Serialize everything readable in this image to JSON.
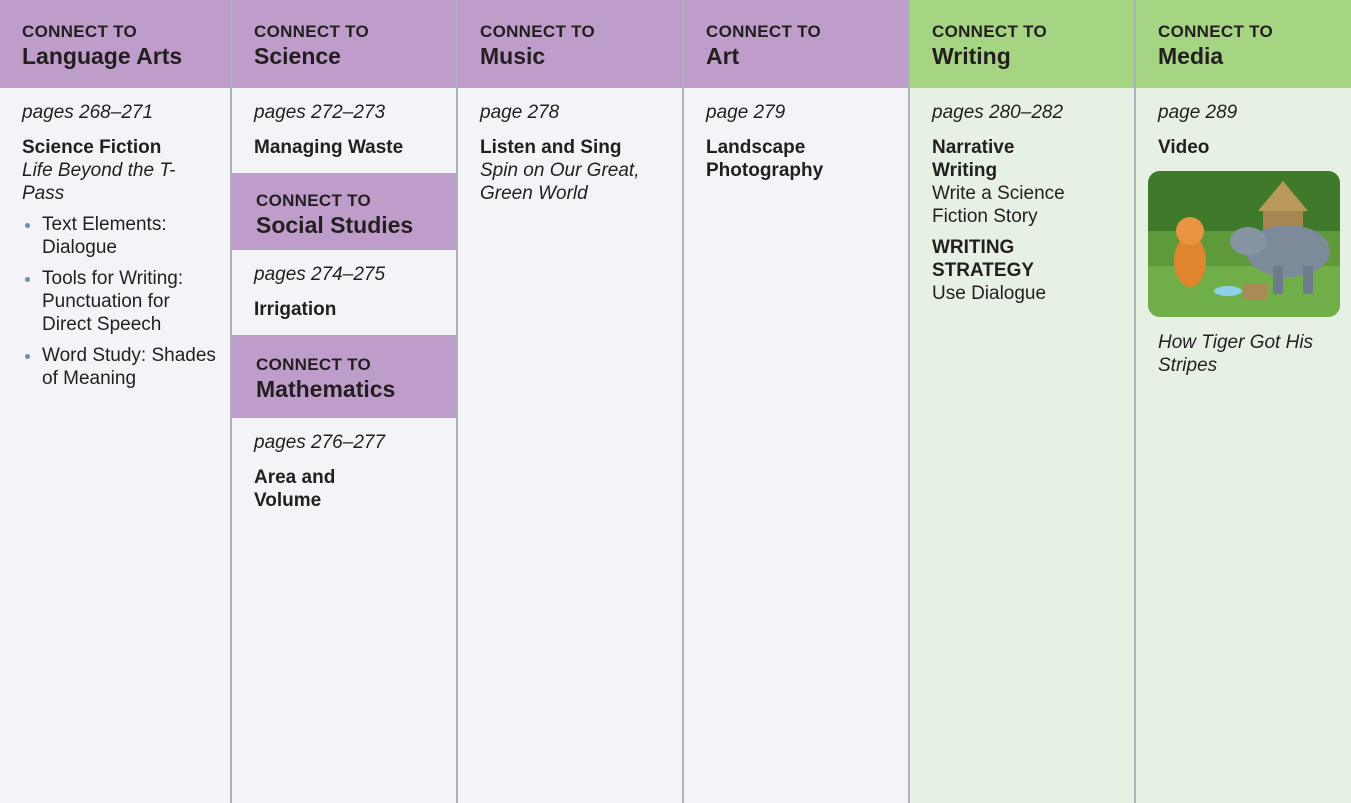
{
  "columns": [
    {
      "label": "CONNECT TO",
      "title": "Language Arts",
      "pages": "pages 268–271",
      "heading": "Science Fiction",
      "subtitle": "Life Beyond the T-Pass",
      "bullets": [
        "Text Elements: Dialogue",
        "Tools for Writing: Punctuation for Direct Speech",
        "Word Study: Shades of Meaning"
      ]
    },
    {
      "label": "CONNECT TO",
      "title": "Science",
      "pages": "pages 272–273",
      "heading": "Managing Waste",
      "sections": [
        {
          "label": "CONNECT TO",
          "title": "Social Studies",
          "pages": "pages 274–275",
          "heading": "Irrigation"
        },
        {
          "label": "CONNECT TO",
          "title": "Mathematics",
          "pages": "pages 276–277",
          "heading": "Area and Volume"
        }
      ]
    },
    {
      "label": "CONNECT TO",
      "title": "Music",
      "pages": "page 278",
      "heading": "Listen and Sing",
      "subtitle": "Spin on Our Great, Green World"
    },
    {
      "label": "CONNECT TO",
      "title": "Art",
      "pages": "page 279",
      "heading": "Landscape Photography"
    },
    {
      "label": "CONNECT TO",
      "title": "Writing",
      "pages": "pages 280–282",
      "heading": "Narrative Writing",
      "text": "Write a Science Fiction Story",
      "strategy": "WRITING STRATEGY",
      "strategy_text": "Use Dialogue"
    },
    {
      "label": "CONNECT TO",
      "title": "Media",
      "pages": "page 289",
      "heading": "Video",
      "caption": "How Tiger Got His Stripes"
    }
  ]
}
